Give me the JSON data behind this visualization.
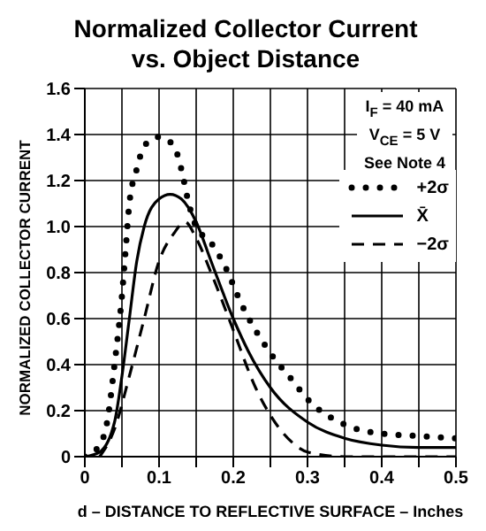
{
  "chart_data": {
    "type": "line",
    "title": "Normalized Collector Current\nvs. Object Distance",
    "xlabel": "d – DISTANCE TO REFLECTIVE SURFACE – Inches",
    "ylabel": "NORMALIZED COLLECTOR CURRENT",
    "annotations": [
      "I$_{F}$ = 40 mA",
      "V$_{CE}$ = 5 V",
      "See Note 4"
    ],
    "xlim": [
      0,
      0.5
    ],
    "xticks": [
      0,
      {
        "value": 0.05,
        "label": null
      },
      0.1,
      {
        "value": 0.15,
        "label": null
      },
      0.2,
      {
        "value": 0.25,
        "label": null
      },
      0.3,
      {
        "value": 0.35,
        "label": null
      },
      0.4,
      {
        "value": 0.45,
        "label": null
      },
      0.5
    ],
    "ylim": [
      0,
      1.6
    ],
    "yticks": [
      0,
      0.2,
      0.4,
      0.6,
      0.8,
      {
        "value": 1,
        "label": "1.0"
      },
      1.2,
      1.4,
      1.6
    ],
    "grid": true,
    "legend": "top right",
    "marker": "none",
    "series": [
      {
        "name": "+2σ",
        "color": "#000000",
        "line_style": "dotted",
        "x": [
          0,
          0.02,
          0.03,
          0.04,
          0.05,
          0.055,
          0.06,
          0.07,
          0.08,
          0.1,
          0.12,
          0.13,
          0.14,
          0.15,
          0.17,
          0.19,
          0.21,
          0.25,
          0.28,
          0.3,
          0.35,
          0.4,
          0.45,
          0.5
        ],
        "values": [
          0,
          0.05,
          0.15,
          0.4,
          0.7,
          0.9,
          1.1,
          1.25,
          1.35,
          1.39,
          1.35,
          1.25,
          1.1,
          1.0,
          0.93,
          0.82,
          0.67,
          0.45,
          0.33,
          0.25,
          0.14,
          0.1,
          0.09,
          0.08
        ]
      },
      {
        "name": "X̄",
        "color": "#000000",
        "line_style": "solid",
        "x": [
          0,
          0.02,
          0.04,
          0.05,
          0.06,
          0.07,
          0.08,
          0.1,
          0.115,
          0.13,
          0.15,
          0.17,
          0.2,
          0.22,
          0.25,
          0.3,
          0.35,
          0.4,
          0.45,
          0.5
        ],
        "values": [
          0,
          0.02,
          0.15,
          0.35,
          0.6,
          0.85,
          1.0,
          1.12,
          1.14,
          1.12,
          1.02,
          0.85,
          0.6,
          0.46,
          0.3,
          0.15,
          0.08,
          0.05,
          0.04,
          0.04
        ]
      },
      {
        "name": "−2σ",
        "color": "#000000",
        "line_style": "dashed",
        "x": [
          0.02,
          0.04,
          0.06,
          0.08,
          0.1,
          0.12,
          0.135,
          0.15,
          0.17,
          0.2,
          0.23,
          0.25,
          0.28,
          0.3,
          0.35,
          0.5
        ],
        "values": [
          0,
          0.12,
          0.35,
          0.6,
          0.85,
          0.97,
          1.02,
          0.95,
          0.8,
          0.55,
          0.3,
          0.18,
          0.06,
          0.02,
          0,
          0
        ]
      }
    ]
  }
}
